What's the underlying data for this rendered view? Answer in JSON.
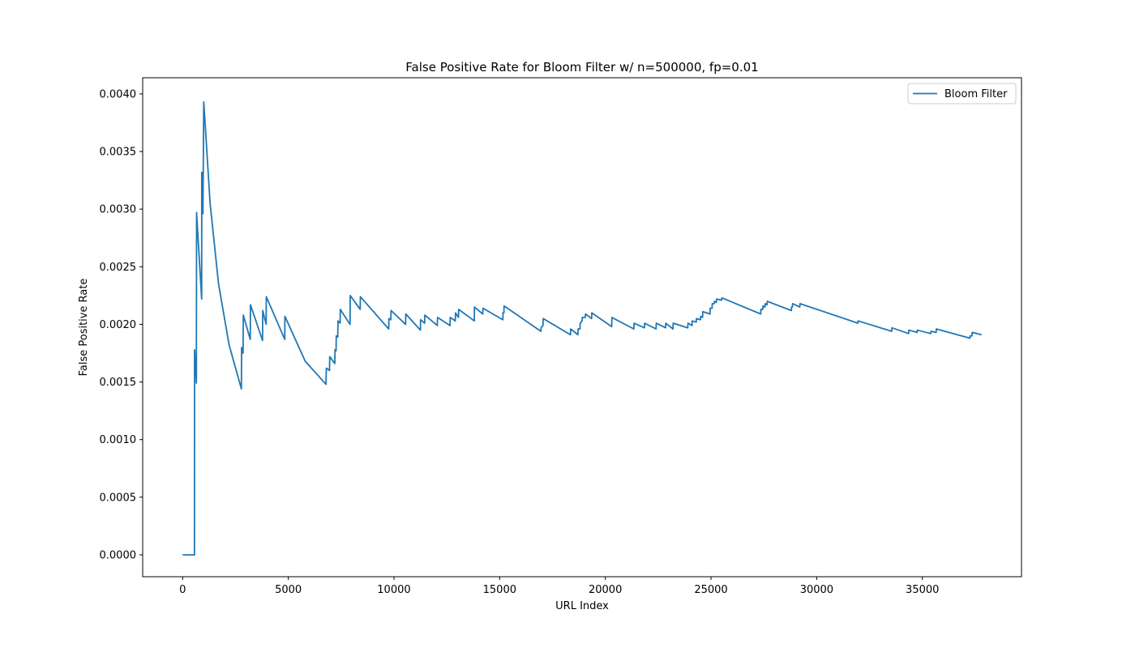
{
  "chart_data": {
    "type": "line",
    "title": "False Positive Rate for Bloom Filter w/ n=500000, fp=0.01",
    "xlabel": "URL Index",
    "ylabel": "False Positive Rate",
    "xlim": [
      -1890,
      39690
    ],
    "ylim": [
      -0.00019,
      0.00414
    ],
    "xticks": [
      0,
      5000,
      10000,
      15000,
      20000,
      25000,
      30000,
      35000
    ],
    "xtick_labels": [
      "0",
      "5000",
      "10000",
      "15000",
      "20000",
      "25000",
      "30000",
      "35000"
    ],
    "yticks": [
      0.0,
      0.0005,
      0.001,
      0.0015,
      0.002,
      0.0025,
      0.003,
      0.0035,
      0.004
    ],
    "ytick_labels": [
      "0.0000",
      "0.0005",
      "0.0010",
      "0.0015",
      "0.0020",
      "0.0025",
      "0.0030",
      "0.0035",
      "0.0040"
    ],
    "grid": false,
    "legend": {
      "position": "top-right",
      "entries": [
        "Bloom Filter"
      ]
    },
    "series": [
      {
        "name": "Bloom Filter",
        "color": "#1f77b4",
        "points": [
          [
            0,
            0.0
          ],
          [
            560,
            0.0
          ],
          [
            565,
            0.00178
          ],
          [
            650,
            0.00149
          ],
          [
            660,
            0.00297
          ],
          [
            900,
            0.00222
          ],
          [
            905,
            0.00332
          ],
          [
            960,
            0.00296
          ],
          [
            1000,
            0.00393
          ],
          [
            1300,
            0.00305
          ],
          [
            1700,
            0.00235
          ],
          [
            2200,
            0.00182
          ],
          [
            2780,
            0.00144
          ],
          [
            2790,
            0.0018
          ],
          [
            2860,
            0.00175
          ],
          [
            2870,
            0.00208
          ],
          [
            3200,
            0.00187
          ],
          [
            3210,
            0.00217
          ],
          [
            3780,
            0.00186
          ],
          [
            3790,
            0.00212
          ],
          [
            3950,
            0.002
          ],
          [
            3960,
            0.00224
          ],
          [
            4830,
            0.00187
          ],
          [
            4840,
            0.00207
          ],
          [
            5800,
            0.00168
          ],
          [
            6780,
            0.00148
          ],
          [
            6800,
            0.00162
          ],
          [
            6950,
            0.0016
          ],
          [
            6960,
            0.00172
          ],
          [
            7200,
            0.00166
          ],
          [
            7210,
            0.00178
          ],
          [
            7260,
            0.00177
          ],
          [
            7270,
            0.0019
          ],
          [
            7340,
            0.00189
          ],
          [
            7350,
            0.00203
          ],
          [
            7450,
            0.00201
          ],
          [
            7460,
            0.00213
          ],
          [
            7920,
            0.002
          ],
          [
            7930,
            0.00225
          ],
          [
            8400,
            0.00213
          ],
          [
            8410,
            0.00224
          ],
          [
            9750,
            0.00196
          ],
          [
            9760,
            0.00205
          ],
          [
            9850,
            0.00204
          ],
          [
            9860,
            0.00212
          ],
          [
            10550,
            0.002
          ],
          [
            10560,
            0.00209
          ],
          [
            11250,
            0.00195
          ],
          [
            11260,
            0.00204
          ],
          [
            11450,
            0.00201
          ],
          [
            11460,
            0.00208
          ],
          [
            12050,
            0.00199
          ],
          [
            12060,
            0.00206
          ],
          [
            12650,
            0.00199
          ],
          [
            12660,
            0.00206
          ],
          [
            12900,
            0.00203
          ],
          [
            12910,
            0.0021
          ],
          [
            13050,
            0.00206
          ],
          [
            13060,
            0.00213
          ],
          [
            13800,
            0.00203
          ],
          [
            13810,
            0.00215
          ],
          [
            14200,
            0.00209
          ],
          [
            14210,
            0.00214
          ],
          [
            15150,
            0.00204
          ],
          [
            15160,
            0.0021
          ],
          [
            15200,
            0.0021
          ],
          [
            15210,
            0.00216
          ],
          [
            16950,
            0.00194
          ],
          [
            16960,
            0.00197
          ],
          [
            17050,
            0.00199
          ],
          [
            17060,
            0.00205
          ],
          [
            18350,
            0.00191
          ],
          [
            18360,
            0.00196
          ],
          [
            18700,
            0.00191
          ],
          [
            18710,
            0.00196
          ],
          [
            18800,
            0.00196
          ],
          [
            18810,
            0.00201
          ],
          [
            18900,
            0.00203
          ],
          [
            18910,
            0.00206
          ],
          [
            19050,
            0.00206
          ],
          [
            19060,
            0.00209
          ],
          [
            19350,
            0.00205
          ],
          [
            19360,
            0.0021
          ],
          [
            20300,
            0.00198
          ],
          [
            20310,
            0.00206
          ],
          [
            21350,
            0.00196
          ],
          [
            21360,
            0.00201
          ],
          [
            21850,
            0.00197
          ],
          [
            21860,
            0.00201
          ],
          [
            22400,
            0.00196
          ],
          [
            22410,
            0.00201
          ],
          [
            22850,
            0.00197
          ],
          [
            22860,
            0.00201
          ],
          [
            23200,
            0.00196
          ],
          [
            23210,
            0.00201
          ],
          [
            23900,
            0.00197
          ],
          [
            23910,
            0.00201
          ],
          [
            24100,
            0.00199
          ],
          [
            24110,
            0.00203
          ],
          [
            24300,
            0.00202
          ],
          [
            24310,
            0.00205
          ],
          [
            24500,
            0.00204
          ],
          [
            24510,
            0.00207
          ],
          [
            24600,
            0.00206
          ],
          [
            24610,
            0.00211
          ],
          [
            24950,
            0.00209
          ],
          [
            24960,
            0.00214
          ],
          [
            25050,
            0.00214
          ],
          [
            25060,
            0.00218
          ],
          [
            25150,
            0.00218
          ],
          [
            25160,
            0.0022
          ],
          [
            25250,
            0.00219
          ],
          [
            25260,
            0.00222
          ],
          [
            25500,
            0.00221
          ],
          [
            25510,
            0.00223
          ],
          [
            27350,
            0.00209
          ],
          [
            27360,
            0.00213
          ],
          [
            27450,
            0.00213
          ],
          [
            27460,
            0.00216
          ],
          [
            27550,
            0.00215
          ],
          [
            27560,
            0.00218
          ],
          [
            27650,
            0.00217
          ],
          [
            27660,
            0.0022
          ],
          [
            28800,
            0.00212
          ],
          [
            28810,
            0.00215
          ],
          [
            28850,
            0.00215
          ],
          [
            28860,
            0.00218
          ],
          [
            29200,
            0.00215
          ],
          [
            29210,
            0.00218
          ],
          [
            31950,
            0.00201
          ],
          [
            31960,
            0.00203
          ],
          [
            33550,
            0.00194
          ],
          [
            33560,
            0.00197
          ],
          [
            34350,
            0.00192
          ],
          [
            34360,
            0.00195
          ],
          [
            34750,
            0.00193
          ],
          [
            34760,
            0.00195
          ],
          [
            35400,
            0.00192
          ],
          [
            35410,
            0.00194
          ],
          [
            35650,
            0.00193
          ],
          [
            35660,
            0.00196
          ],
          [
            37250,
            0.00188
          ],
          [
            37260,
            0.0019
          ],
          [
            37350,
            0.0019
          ],
          [
            37360,
            0.00193
          ],
          [
            37800,
            0.00191
          ]
        ]
      }
    ]
  }
}
